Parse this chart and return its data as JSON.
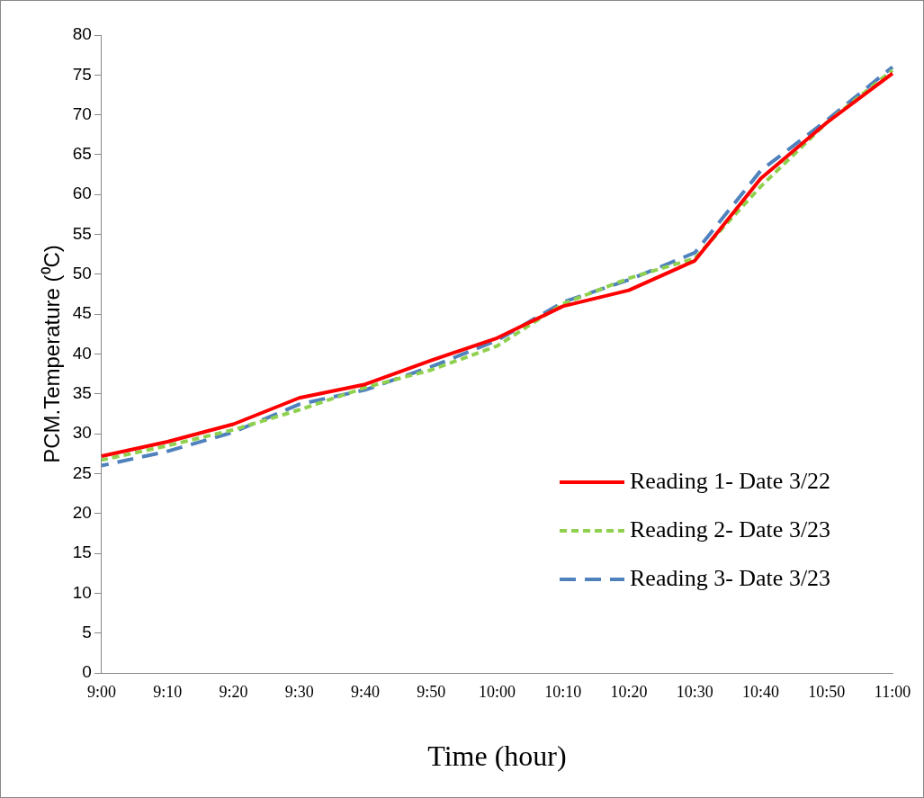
{
  "chart_data": {
    "type": "line",
    "xlabel": "Time (hour)",
    "ylabel": "PCM.Temperature (⁰C)",
    "categories": [
      "9:00",
      "9:10",
      "9:20",
      "9:30",
      "9:40",
      "9:50",
      "10:00",
      "10:10",
      "10:20",
      "10:30",
      "10:40",
      "10:50",
      "11:00"
    ],
    "series": [
      {
        "name": "Reading 1- Date 3/22",
        "color": "#ff0000",
        "line_style": "solid",
        "values": [
          27.2,
          29,
          31.2,
          34.5,
          36.2,
          39.2,
          42,
          46,
          48,
          51.7,
          62,
          69,
          75.2
        ]
      },
      {
        "name": "Reading 2- Date 3/23",
        "color": "#8fd14f",
        "line_style": "dotted",
        "values": [
          26.7,
          28.5,
          30.5,
          33,
          35.8,
          38,
          41,
          46.3,
          49.5,
          52,
          61,
          69,
          75.6
        ]
      },
      {
        "name": "Reading 3- Date 3/23",
        "color": "#4f81bd",
        "line_style": "dashed",
        "values": [
          26,
          27.8,
          30.2,
          33.7,
          35.5,
          38.4,
          41.7,
          46.5,
          49.3,
          52.7,
          63,
          69.3,
          76
        ]
      }
    ],
    "ylim": [
      0,
      80
    ],
    "yticks": [
      0,
      5,
      10,
      15,
      20,
      25,
      30,
      35,
      40,
      45,
      50,
      55,
      60,
      65,
      70,
      75,
      80
    ],
    "grid": false,
    "legend": "bottom right",
    "marker": "none"
  }
}
